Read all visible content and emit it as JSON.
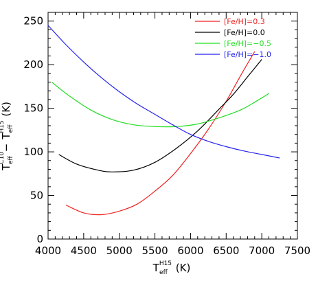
{
  "chart_data": {
    "type": "line",
    "xlabel": {
      "base": "T",
      "sup": "H15",
      "sub": "eff",
      "unit": "(K)"
    },
    "ylabel": {
      "base1": "T",
      "sup1": "C10",
      "sub1": "eff",
      "minus": "−",
      "base2": "T",
      "sup2": "H15",
      "sub2": "eff",
      "unit": "(K)"
    },
    "xlim": [
      4000,
      7500
    ],
    "ylim": [
      0,
      260
    ],
    "xticks": [
      4000,
      4500,
      5000,
      5500,
      6000,
      6500,
      7000,
      7500
    ],
    "yticks": [
      0,
      50,
      100,
      150,
      200,
      250
    ],
    "legend_position": "top-right",
    "series": [
      {
        "name": "[Fe/H]=0.3",
        "color": "#ee2222",
        "name_color": "#ee2222",
        "points": [
          [
            4250,
            39
          ],
          [
            4500,
            30
          ],
          [
            4750,
            28
          ],
          [
            5000,
            32
          ],
          [
            5250,
            40
          ],
          [
            5500,
            55
          ],
          [
            5750,
            73
          ],
          [
            6000,
            98
          ],
          [
            6250,
            126
          ],
          [
            6500,
            158
          ],
          [
            6700,
            187
          ],
          [
            6900,
            215
          ]
        ]
      },
      {
        "name": "[Fe/H]=0.0",
        "color": "#000000",
        "name_color": "#000000",
        "points": [
          [
            4150,
            97
          ],
          [
            4400,
            86
          ],
          [
            4700,
            79
          ],
          [
            4900,
            77
          ],
          [
            5200,
            79
          ],
          [
            5500,
            88
          ],
          [
            5800,
            104
          ],
          [
            6100,
            124
          ],
          [
            6400,
            149
          ],
          [
            6600,
            166
          ],
          [
            6800,
            186
          ],
          [
            7000,
            206
          ]
        ]
      },
      {
        "name": "[Fe/H]=−0.5",
        "color": "#22dd22",
        "name_color": "#22dd22",
        "points": [
          [
            4050,
            180
          ],
          [
            4300,
            164
          ],
          [
            4600,
            148
          ],
          [
            4900,
            137
          ],
          [
            5200,
            131
          ],
          [
            5500,
            129
          ],
          [
            5800,
            129
          ],
          [
            6100,
            132
          ],
          [
            6400,
            139
          ],
          [
            6700,
            148
          ],
          [
            6900,
            157
          ],
          [
            7100,
            167
          ]
        ]
      },
      {
        "name": "[Fe/H]=−1.0",
        "color": "#2222ee",
        "name_color": "#2222ee",
        "points": [
          [
            4000,
            245
          ],
          [
            4250,
            223
          ],
          [
            4500,
            203
          ],
          [
            4750,
            185
          ],
          [
            5000,
            169
          ],
          [
            5250,
            155
          ],
          [
            5500,
            143
          ],
          [
            5750,
            131
          ],
          [
            6000,
            120
          ],
          [
            6250,
            112
          ],
          [
            6500,
            106
          ],
          [
            6750,
            101
          ],
          [
            7000,
            97
          ],
          [
            7250,
            93
          ]
        ]
      }
    ]
  }
}
